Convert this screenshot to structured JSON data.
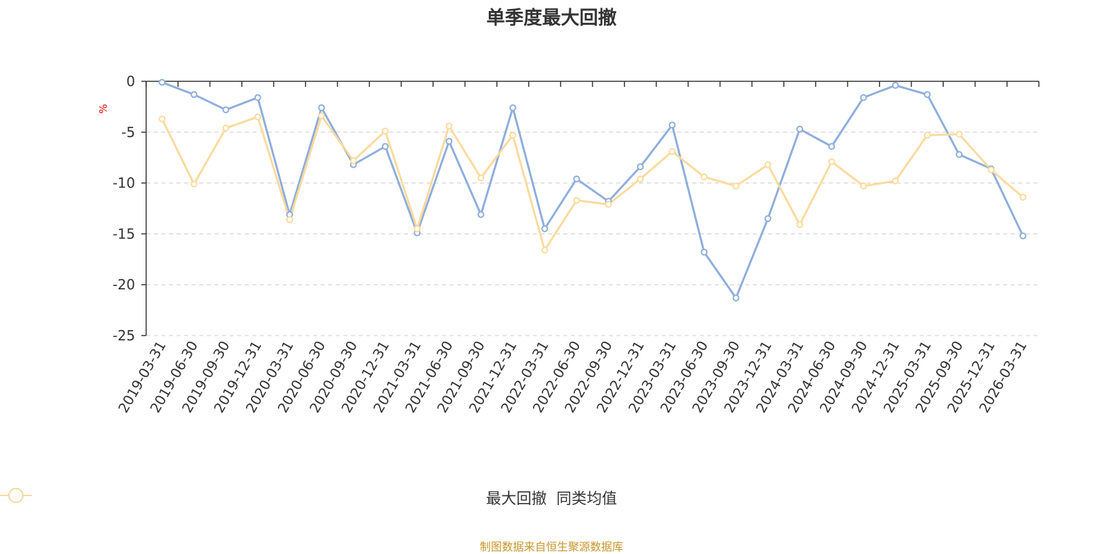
{
  "colors": {
    "series1": "#8eaedb",
    "series2": "#fcda9e",
    "axis_unit": "#ff0000",
    "source": "#c8962a"
  },
  "source_text": "制图数据来自恒生聚源数据库",
  "chart_data": {
    "type": "line",
    "title": "单季度最大回撤",
    "ylabel": "%",
    "ylim": [
      -25,
      0
    ],
    "yticks": [
      0,
      -5,
      -10,
      -15,
      -20,
      -25
    ],
    "grid": true,
    "legend_position": "bottom",
    "x": [
      "2019-03-31",
      "2019-06-30",
      "2019-09-30",
      "2019-12-31",
      "2020-03-31",
      "2020-06-30",
      "2020-09-30",
      "2020-12-31",
      "2021-03-31",
      "2021-06-30",
      "2021-09-30",
      "2021-12-31",
      "2022-03-31",
      "2022-06-30",
      "2022-09-30",
      "2022-12-31",
      "2023-03-31",
      "2023-06-30",
      "2023-09-30",
      "2023-12-31",
      "2024-03-31",
      "2024-06-30",
      "2024-09-30",
      "2024-12-31",
      "2025-03-31",
      "2025-09-30",
      "2025-12-31",
      "2026-03-31"
    ],
    "series": [
      {
        "name": "最大回撤",
        "color": "#8eaedb",
        "values": [
          -0.1,
          -1.3,
          -2.8,
          -1.6,
          -13.1,
          -2.6,
          -8.2,
          -6.4,
          -14.9,
          -5.9,
          -13.1,
          -2.6,
          -14.5,
          -9.6,
          -11.8,
          -8.4,
          -4.3,
          -16.8,
          -21.3,
          -13.5,
          -4.7,
          -6.4,
          -1.6,
          -0.4,
          -1.3,
          -7.2,
          -8.6,
          -15.2
        ]
      },
      {
        "name": "同类均值",
        "color": "#fcda9e",
        "values": [
          -3.7,
          -10.1,
          -4.6,
          -3.5,
          -13.6,
          -3.4,
          -7.8,
          -4.9,
          -14.5,
          -4.4,
          -9.5,
          -5.3,
          -16.6,
          -11.7,
          -12.1,
          -9.6,
          -6.9,
          -9.4,
          -10.3,
          -8.2,
          -14.1,
          -7.9,
          -10.3,
          -9.8,
          -5.3,
          -5.2,
          -8.7,
          -11.4
        ]
      }
    ]
  }
}
